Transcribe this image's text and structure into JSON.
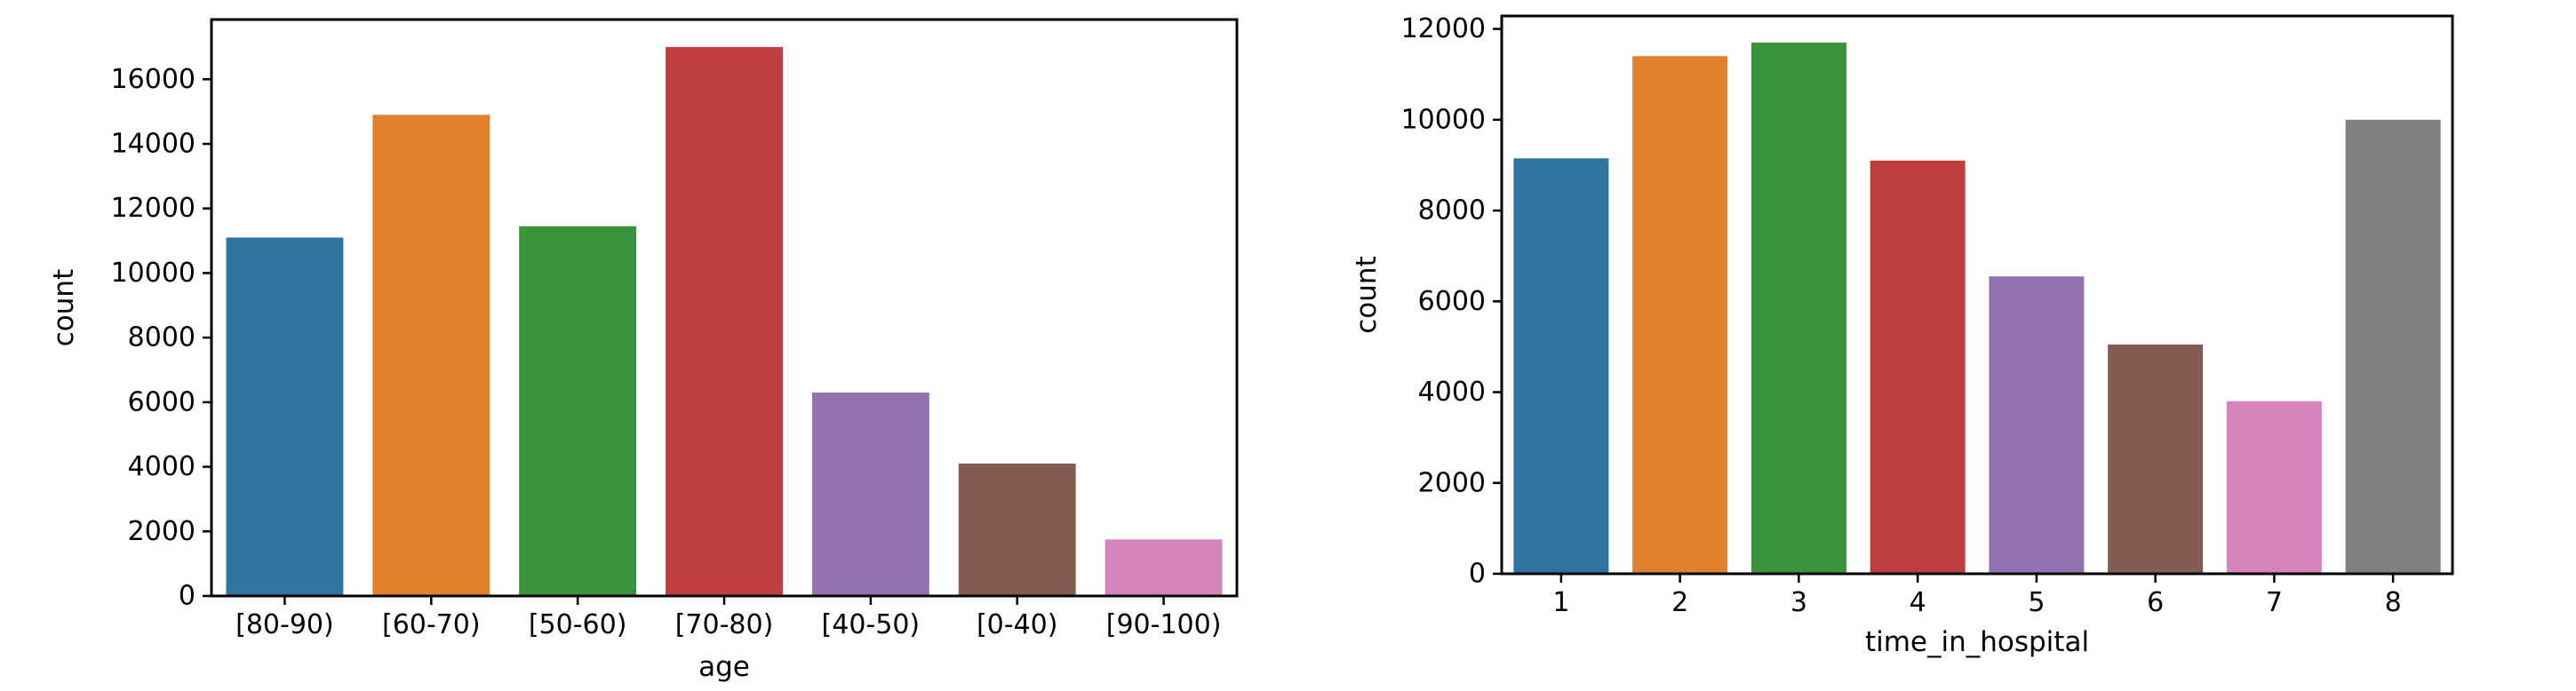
{
  "chart_data": [
    {
      "type": "bar",
      "categories": [
        "[80-90)",
        "[60-70)",
        "[50-60)",
        "[70-80)",
        "[40-50)",
        "[0-40)",
        "[90-100)"
      ],
      "values": [
        11100,
        14900,
        11450,
        17000,
        6300,
        4100,
        1750
      ],
      "colors": [
        "#3274a1",
        "#e1812c",
        "#3a923a",
        "#c03d3e",
        "#9372b2",
        "#845b53",
        "#d684bd"
      ],
      "yticks": [
        0,
        2000,
        4000,
        6000,
        8000,
        10000,
        12000,
        14000,
        16000
      ],
      "title": "",
      "xlabel": "age",
      "ylabel": "count",
      "ylim": [
        0,
        17850
      ],
      "grid": false
    },
    {
      "type": "bar",
      "categories": [
        "1",
        "2",
        "3",
        "4",
        "5",
        "6",
        "7",
        "8"
      ],
      "values": [
        9150,
        11400,
        11700,
        9100,
        6550,
        5050,
        3800,
        10000
      ],
      "colors": [
        "#3274a1",
        "#e1812c",
        "#3a923a",
        "#c03d3e",
        "#9372b2",
        "#845b53",
        "#d684bd",
        "#7f7f7f"
      ],
      "yticks": [
        0,
        2000,
        4000,
        6000,
        8000,
        10000,
        12000
      ],
      "title": "",
      "xlabel": "time_in_hospital",
      "ylabel": "count",
      "ylim": [
        0,
        12285
      ],
      "grid": false
    }
  ]
}
